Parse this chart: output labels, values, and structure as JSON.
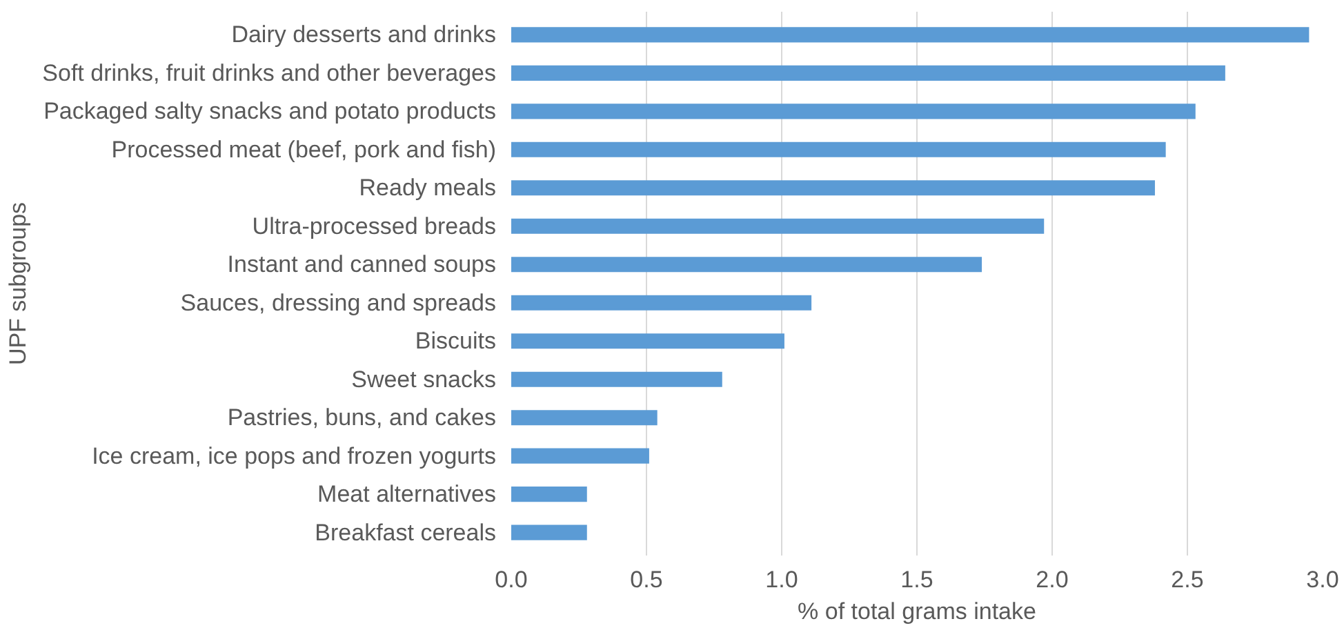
{
  "chart_data": {
    "type": "bar",
    "orientation": "horizontal",
    "xlabel": "% of total grams intake",
    "ylabel": "UPF subgroups",
    "categories": [
      "Dairy desserts and drinks",
      "Soft drinks, fruit drinks and other beverages",
      "Packaged salty snacks and potato products",
      "Processed meat (beef, pork and fish)",
      "Ready meals",
      "Ultra-processed breads",
      "Instant and canned soups",
      "Sauces, dressing and spreads",
      "Biscuits",
      "Sweet snacks",
      "Pastries, buns, and cakes",
      "Ice cream, ice pops and frozen yogurts",
      "Meat alternatives",
      "Breakfast cereals"
    ],
    "values": [
      2.95,
      2.64,
      2.53,
      2.42,
      2.38,
      1.97,
      1.74,
      1.11,
      1.01,
      0.78,
      0.54,
      0.51,
      0.28,
      0.28
    ],
    "color": "#5b9bd5",
    "xlim": [
      0,
      3
    ],
    "xticks": [
      {
        "value": 0,
        "label": "0.0"
      },
      {
        "value": 0.5,
        "label": "0.5"
      },
      {
        "value": 1,
        "label": "1.0"
      },
      {
        "value": 1.5,
        "label": "1.5"
      },
      {
        "value": 2,
        "label": "2.0"
      },
      {
        "value": 2.5,
        "label": "2.5"
      },
      {
        "value": 3,
        "label": "3.0"
      }
    ],
    "grid": "x"
  }
}
